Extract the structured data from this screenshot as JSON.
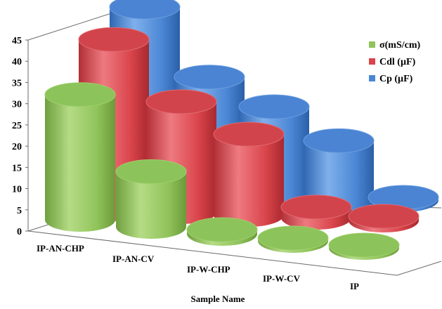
{
  "chart_data": {
    "type": "bar",
    "style": "3d-cylinder",
    "categories": [
      "IP-AN-CHP",
      "IP-AN-CV",
      "IP-W-CHP",
      "IP-W-CV",
      "IP"
    ],
    "series": [
      {
        "name": "σ(mS/cm)",
        "values": [
          29.5,
          13,
          1,
          0.5,
          0.5
        ],
        "color": "#8fc35a"
      },
      {
        "name": "Cdl (µF)",
        "values": [
          40,
          26,
          19,
          2.5,
          1
        ],
        "color": "#d9434a"
      },
      {
        "name": "Cp (µF)",
        "values": [
          45.5,
          29,
          22,
          14,
          0.5
        ],
        "color": "#4a86d4"
      }
    ],
    "title": "",
    "xlabel": "Sample Name",
    "ylabel": "",
    "ylim": [
      0,
      45
    ],
    "yticks": [
      "0",
      "5",
      "10",
      "15",
      "20",
      "25",
      "30",
      "35",
      "40",
      "45"
    ],
    "grid": false,
    "legend_position": "top-right"
  }
}
